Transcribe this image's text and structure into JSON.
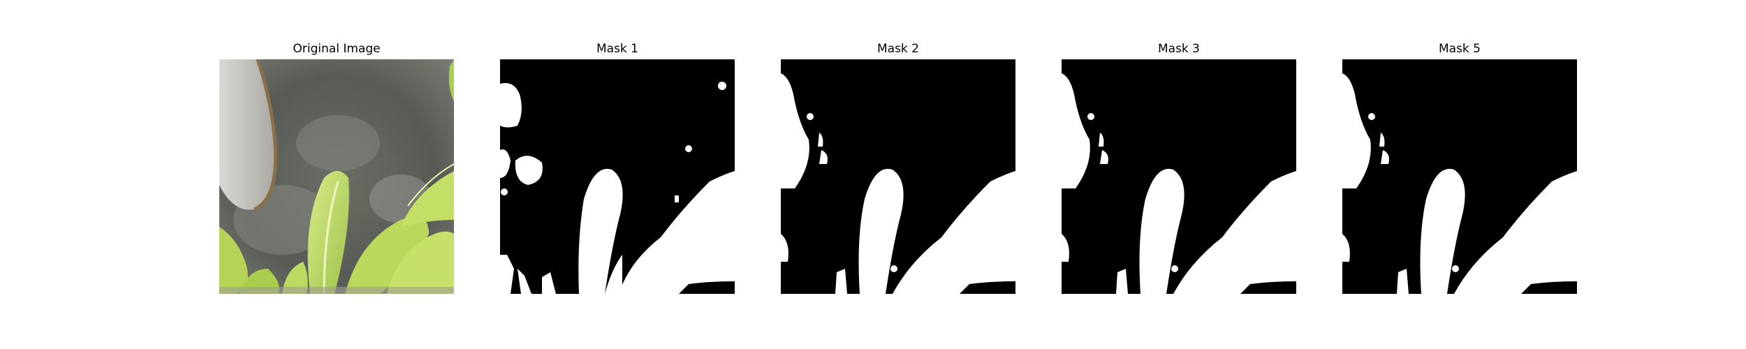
{
  "figure": {
    "panels": [
      {
        "title": "Original Image",
        "kind": "photo"
      },
      {
        "title": "Mask 1",
        "kind": "mask",
        "variant": "noisy"
      },
      {
        "title": "Mask 2",
        "kind": "mask",
        "variant": "clean"
      },
      {
        "title": "Mask 3",
        "kind": "mask",
        "variant": "clean"
      },
      {
        "title": "Mask 5",
        "kind": "mask",
        "variant": "clean"
      }
    ]
  },
  "colors": {
    "mask_foreground": "#ffffff",
    "mask_background": "#000000",
    "leaf": "#b7d65a",
    "leaf_light": "#d9ec8a",
    "soil": "#6f726c",
    "stone": "#c9c9c6"
  }
}
